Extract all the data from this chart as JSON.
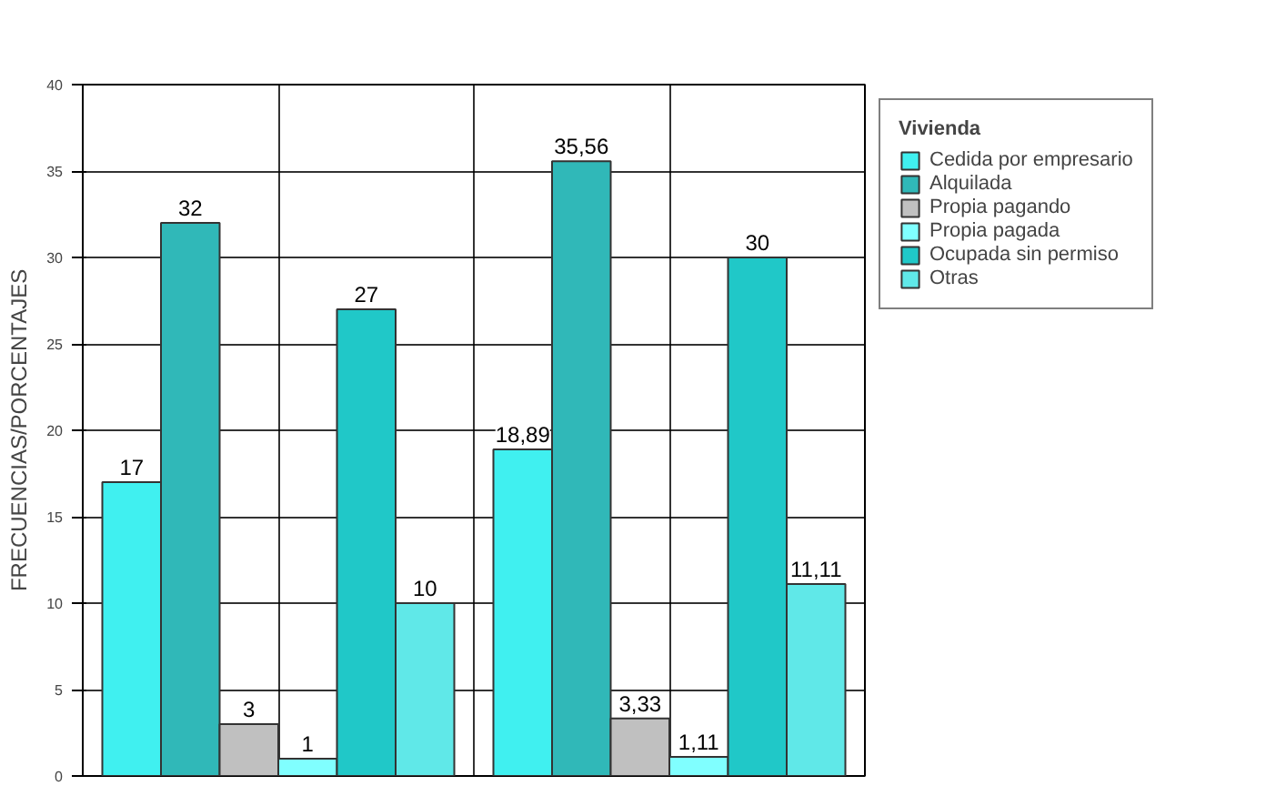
{
  "chart_data": {
    "type": "bar",
    "ylabel": "FRECUENCIAS/PORCENTAJES",
    "legend_title": "Vivienda",
    "categories": [
      null,
      null
    ],
    "series": [
      {
        "name": "Cedida por empresario",
        "color": "#40f0f0",
        "values": [
          17,
          18.89
        ],
        "value_labels": [
          "17",
          "18,89"
        ]
      },
      {
        "name": "Alquilada",
        "color": "#30b8b8",
        "values": [
          32,
          35.56
        ],
        "value_labels": [
          "32",
          "35,56"
        ]
      },
      {
        "name": "Propia pagando",
        "color": "#c0c0c0",
        "values": [
          3,
          3.33
        ],
        "value_labels": [
          "3",
          "3,33"
        ]
      },
      {
        "name": "Propia pagada",
        "color": "#80ffff",
        "values": [
          1,
          1.11
        ],
        "value_labels": [
          "1",
          "1,11"
        ]
      },
      {
        "name": "Ocupada sin permiso",
        "color": "#20c8c8",
        "values": [
          27,
          30
        ],
        "value_labels": [
          "27",
          "30"
        ]
      },
      {
        "name": "Otras",
        "color": "#60e8e8",
        "values": [
          10,
          11.11
        ],
        "value_labels": [
          "10",
          "11,11"
        ]
      }
    ],
    "ylim": [
      0,
      40
    ],
    "yticks": [
      0,
      5,
      10,
      15,
      20,
      25,
      30,
      35,
      40
    ],
    "grid": true,
    "legend": "top right"
  }
}
